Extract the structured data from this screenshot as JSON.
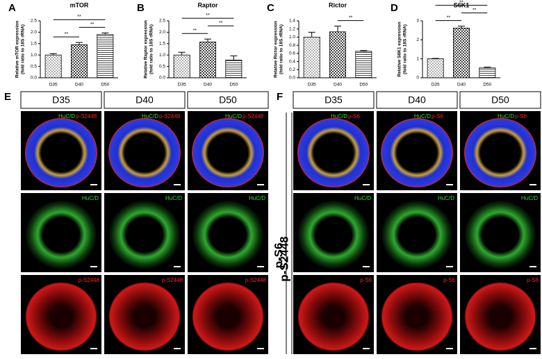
{
  "chart_data": [
    {
      "type": "bar",
      "panel": "A",
      "title": "mTOR",
      "y_label": [
        "Relative mTOR expression",
        "(fold ratio to 18S rRNA)"
      ],
      "categories": [
        "D35",
        "D40",
        "D50"
      ],
      "values": [
        1.0,
        1.45,
        1.9
      ],
      "errors": [
        0.06,
        0.1,
        0.07
      ],
      "ylim": [
        0,
        2.5
      ],
      "yticks": [
        {
          "value": 0,
          "label": "0.0"
        },
        0.5,
        {
          "value": 1,
          "label": "1.0"
        },
        1.5,
        {
          "value": 2,
          "label": "2.0"
        },
        2.5
      ],
      "significance": [
        {
          "from": "D35",
          "to": "D40",
          "label": "**"
        },
        {
          "from": "D40",
          "to": "D50",
          "label": "**"
        },
        {
          "from": "D35",
          "to": "D50",
          "label": "**"
        }
      ]
    },
    {
      "type": "bar",
      "panel": "B",
      "title": "Raptor",
      "y_label": [
        "Relative Raptor expression",
        "(fold ratio to 18S rRNA)"
      ],
      "categories": [
        "D35",
        "D40",
        "D50"
      ],
      "values": [
        1.0,
        1.57,
        0.78
      ],
      "errors": [
        0.12,
        0.13,
        0.18
      ],
      "ylim": [
        0,
        2.5
      ],
      "yticks": [
        {
          "value": 0,
          "label": "0.0"
        },
        0.5,
        {
          "value": 1,
          "label": "1.0"
        },
        1.5,
        {
          "value": 2,
          "label": "2.0"
        },
        2.5
      ],
      "significance": [
        {
          "from": "D35",
          "to": "D40",
          "label": "**"
        },
        {
          "from": "D40",
          "to": "D50",
          "label": "**"
        },
        {
          "from": "D35",
          "to": "D50",
          "label": "**"
        }
      ]
    },
    {
      "type": "bar",
      "panel": "C",
      "title": "Rictor",
      "y_label": [
        "Relative Rictor expression",
        "(fold ratio to 18S rRNA)"
      ],
      "categories": [
        "D35",
        "D40",
        "D50"
      ],
      "values": [
        1.0,
        1.13,
        0.65
      ],
      "errors": [
        0.12,
        0.14,
        0.02
      ],
      "ylim": [
        0,
        1.4
      ],
      "yticks": [
        {
          "value": 0,
          "label": "0.0"
        },
        0.2,
        0.4,
        0.6,
        0.8,
        {
          "value": 1,
          "label": "1.0"
        },
        1.2,
        1.4
      ],
      "significance": [
        {
          "from": "D40",
          "to": "D50",
          "label": "**"
        }
      ]
    },
    {
      "type": "bar",
      "panel": "D",
      "title": "S6K1",
      "y_label": [
        "Relative S6K1 expression",
        "(fold ratio to 18S rRNA)"
      ],
      "categories": [
        "D35",
        "D40",
        "D50"
      ],
      "values": [
        1.0,
        2.62,
        0.52
      ],
      "errors": [
        0.02,
        0.1,
        0.04
      ],
      "ylim": [
        0,
        3
      ],
      "yticks": [
        0,
        1,
        2,
        3
      ],
      "significance": [
        {
          "from": "D35",
          "to": "D40",
          "label": "**"
        },
        {
          "from": "D40",
          "to": "D50",
          "label": "**"
        },
        {
          "from": "D35",
          "to": "D50",
          "label": "**"
        }
      ]
    }
  ],
  "image_panels": [
    {
      "panel": "E",
      "columns": [
        "D35",
        "D40",
        "D50"
      ],
      "row_label": "p-S2448",
      "green_label": "HuC/D",
      "red_label": "p-S2448"
    },
    {
      "panel": "F",
      "columns": [
        "D35",
        "D40",
        "D50"
      ],
      "row_label": "p-S6",
      "green_label": "HuC/D",
      "red_label": "p-S6"
    }
  ]
}
